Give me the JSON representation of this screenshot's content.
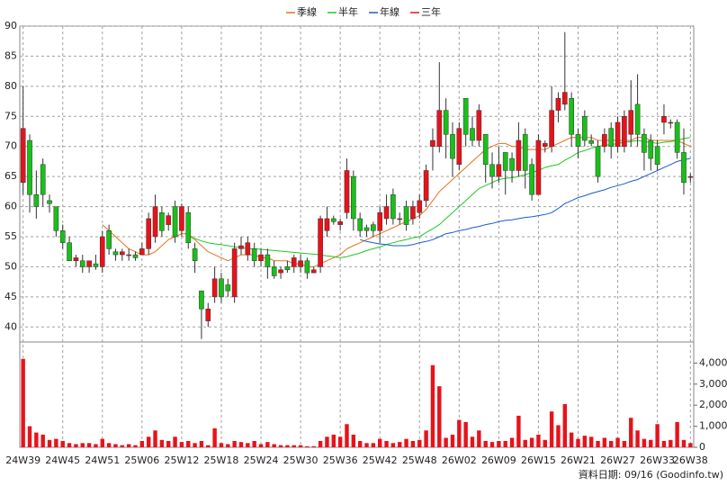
{
  "chart_data": {
    "type": "candlestick",
    "footer": "資料日期: 09/16  (Goodinfo.tw)",
    "up_color": "#e8121a",
    "down_color": "#18c018",
    "ylim": [
      37.5,
      90
    ],
    "yticks": [
      40,
      45,
      50,
      55,
      60,
      65,
      70,
      75,
      80,
      85,
      90
    ],
    "grid": true,
    "categories": [
      "24W39",
      null,
      null,
      null,
      null,
      null,
      "24W45",
      null,
      null,
      null,
      null,
      null,
      "24W51",
      null,
      null,
      null,
      null,
      null,
      "25W06",
      null,
      null,
      null,
      null,
      null,
      "25W12",
      null,
      null,
      null,
      null,
      null,
      "25W18",
      null,
      null,
      null,
      null,
      null,
      "25W24",
      null,
      null,
      null,
      null,
      null,
      "25W30",
      null,
      null,
      null,
      null,
      null,
      "25W36",
      null,
      null,
      null,
      null,
      null,
      "25W42",
      null,
      null,
      null,
      null,
      null,
      "25W48",
      null,
      null,
      null,
      null,
      null,
      "26W02",
      null,
      null,
      null,
      null,
      null,
      "26W09",
      null,
      null,
      null,
      null,
      null,
      "26W15",
      null,
      null,
      null,
      null,
      null,
      "26W21",
      null,
      null,
      null,
      null,
      null,
      "26W27",
      null,
      null,
      null,
      null,
      null,
      "26W33",
      null,
      null,
      null,
      null,
      "26W38"
    ],
    "open": [
      64,
      71,
      62,
      67,
      61,
      60,
      56,
      54,
      51,
      51,
      50,
      50.5,
      50,
      56,
      52.5,
      52,
      52,
      52,
      52,
      53,
      55,
      59,
      57,
      60,
      56,
      59,
      53,
      46,
      41,
      45,
      48,
      47,
      45,
      53,
      52,
      53,
      51,
      52,
      50,
      49,
      50,
      50,
      50,
      51,
      49,
      50,
      56,
      58,
      57,
      59,
      65,
      58,
      56.5,
      57,
      56,
      58,
      62,
      58,
      60,
      58,
      59,
      61,
      70,
      70,
      76,
      72,
      67,
      78,
      73,
      71,
      72,
      67,
      65,
      69,
      68,
      66,
      72,
      67,
      62,
      70,
      70,
      76,
      77,
      78,
      72,
      75,
      71,
      70,
      70,
      73,
      70,
      70,
      72,
      77,
      72,
      71,
      70,
      74,
      74,
      74,
      69,
      65
    ],
    "high": [
      80,
      72,
      66,
      68,
      62,
      60,
      57,
      55,
      52,
      52,
      51,
      52,
      56,
      57,
      53,
      53,
      53,
      52.5,
      54,
      59,
      62,
      60,
      59,
      61,
      60.5,
      60,
      54,
      46,
      44,
      50,
      49,
      48,
      54,
      55,
      55,
      54,
      53,
      53,
      51,
      50,
      51,
      52,
      52,
      51.5,
      50,
      58.5,
      60,
      58.5,
      58,
      68,
      66,
      59,
      57,
      57.5,
      60,
      62,
      63,
      59,
      61,
      61,
      62,
      67,
      73,
      84,
      78,
      74,
      74,
      78,
      75,
      77,
      72,
      69,
      70,
      69,
      69,
      74,
      73,
      68,
      72,
      71,
      80,
      79,
      89,
      79,
      73,
      76,
      72,
      71,
      73,
      74,
      75,
      76,
      81,
      82,
      73,
      72,
      71,
      77,
      74.5,
      74.5,
      73,
      65.5
    ],
    "low": [
      62,
      59,
      58,
      60,
      59,
      55,
      53,
      51,
      50,
      49,
      49,
      49.5,
      49,
      52,
      51,
      51,
      51,
      51,
      52,
      52,
      54,
      55,
      56,
      54,
      55,
      53,
      49,
      38,
      40,
      44,
      44,
      45,
      44,
      52,
      51,
      50,
      50,
      48,
      48,
      48,
      49,
      49,
      49,
      48,
      49,
      49,
      55,
      57,
      56,
      58,
      56,
      55,
      55,
      55,
      54,
      57,
      57,
      57,
      56,
      57,
      58,
      60,
      66,
      69,
      68,
      65,
      66,
      70,
      70,
      70,
      64,
      63,
      64,
      62,
      64,
      65,
      63,
      61,
      62,
      69,
      69,
      74,
      76,
      70,
      68,
      70,
      70,
      64,
      69,
      68,
      69,
      69,
      70,
      70,
      66,
      66,
      66,
      72,
      73,
      68,
      62,
      64
    ],
    "close": [
      73,
      62,
      60,
      62,
      60.5,
      56,
      54,
      51,
      51.5,
      50,
      51,
      50,
      55,
      53,
      52,
      52.5,
      52,
      51.5,
      53,
      58,
      60,
      56,
      58.5,
      55,
      60,
      54,
      51,
      43,
      43,
      48,
      45,
      46,
      53,
      53.5,
      54,
      51,
      52,
      50,
      48.5,
      49.5,
      49.5,
      51.5,
      51,
      49,
      49.5,
      58,
      58,
      57.5,
      57.5,
      66,
      58,
      56,
      56,
      56,
      59,
      60,
      58,
      58,
      57,
      60,
      61,
      66,
      71,
      76,
      72,
      68,
      73,
      72,
      71,
      76,
      67,
      65,
      67,
      66,
      66,
      71,
      66,
      62,
      71,
      70.5,
      76,
      78,
      79,
      72,
      70,
      71,
      70.5,
      65,
      72,
      70,
      74,
      75,
      76,
      72,
      69,
      68,
      67,
      75,
      74,
      69,
      64,
      65
    ],
    "ma_series": [
      {
        "name": "季線",
        "color": "#e8701a",
        "values": [
          null,
          null,
          null,
          null,
          null,
          null,
          null,
          null,
          null,
          null,
          null,
          null,
          57,
          56,
          55,
          54,
          53,
          52.5,
          52,
          52,
          52.5,
          53.5,
          54.5,
          55,
          55.5,
          55.5,
          54.5,
          53.5,
          52.5,
          52,
          51.5,
          51,
          51.5,
          52,
          52,
          52,
          51.5,
          51.5,
          51,
          51,
          51,
          50.5,
          50.5,
          50,
          50,
          50.5,
          51,
          51.5,
          52,
          53,
          53.5,
          54,
          54.5,
          55,
          55.5,
          56,
          56.5,
          57,
          57.5,
          58,
          58.5,
          59.5,
          61,
          62.5,
          63.5,
          64.5,
          65.5,
          66.5,
          67.5,
          68.5,
          69.5,
          70,
          70.5,
          70.5,
          70,
          70,
          69.5,
          69.5,
          69.5,
          69.5,
          70,
          70.5,
          71,
          71.5,
          71.5,
          71.5,
          71.5,
          71,
          71,
          71,
          71,
          71,
          71,
          71.5,
          71.5,
          71,
          71,
          71,
          71,
          71,
          70.5,
          70
        ]
      },
      {
        "name": "半年",
        "color": "#20c820",
        "values": [
          null,
          null,
          null,
          null,
          null,
          null,
          null,
          null,
          null,
          null,
          null,
          null,
          null,
          null,
          null,
          null,
          null,
          null,
          null,
          null,
          null,
          null,
          null,
          null,
          null,
          55,
          54.7,
          54.3,
          54,
          53.8,
          53.7,
          53.5,
          53.3,
          53.2,
          53,
          53,
          52.9,
          52.8,
          52.7,
          52.6,
          52.5,
          52.4,
          52.3,
          52.2,
          52.1,
          52,
          51.8,
          51.7,
          51.5,
          51.7,
          52,
          52.3,
          52.7,
          53,
          53.3,
          53.7,
          54,
          54.3,
          54.5,
          54.8,
          55,
          55.7,
          56.3,
          57,
          58,
          59,
          60,
          61,
          62,
          63,
          63.5,
          64,
          64.5,
          64.7,
          64.8,
          65,
          65.3,
          65.7,
          66,
          66.5,
          66.8,
          67,
          67.7,
          68.3,
          69,
          69.3,
          69.7,
          70,
          70.2,
          70.3,
          70.5,
          70.7,
          70.8,
          71,
          70.8,
          70.7,
          70.5,
          70.7,
          70.8,
          71,
          71.3,
          71.5
        ]
      },
      {
        "name": "年線",
        "color": "#1a5ad0",
        "values": [
          null,
          null,
          null,
          null,
          null,
          null,
          null,
          null,
          null,
          null,
          null,
          null,
          null,
          null,
          null,
          null,
          null,
          null,
          null,
          null,
          null,
          null,
          null,
          null,
          null,
          null,
          null,
          null,
          null,
          null,
          null,
          null,
          null,
          null,
          null,
          null,
          null,
          null,
          null,
          null,
          null,
          null,
          null,
          null,
          null,
          null,
          null,
          null,
          null,
          null,
          null,
          54.5,
          54.2,
          54,
          53.8,
          53.7,
          53.5,
          53.5,
          53.5,
          53.7,
          54,
          54.2,
          54.5,
          55,
          55.5,
          55.7,
          56,
          56.2,
          56.5,
          56.7,
          57,
          57.2,
          57.5,
          57.7,
          57.8,
          58,
          58.2,
          58.3,
          58.5,
          58.7,
          59,
          59.7,
          60.5,
          61,
          61.5,
          61.8,
          62.2,
          62.5,
          62.8,
          63.2,
          63.5,
          63.8,
          64.2,
          64.5,
          65,
          65.5,
          66,
          66.5,
          67,
          67.5,
          67.8,
          68
        ]
      },
      {
        "name": "三年",
        "color": "#e8121a",
        "values": [
          null,
          null,
          null,
          null,
          null,
          null,
          null,
          null,
          null,
          null,
          null,
          null,
          null,
          null,
          null,
          null,
          null,
          null,
          null,
          null,
          null,
          null,
          null,
          null,
          null,
          null,
          null,
          null,
          null,
          null,
          null,
          null,
          null,
          null,
          null,
          null,
          null,
          null,
          null,
          null,
          null,
          null,
          null,
          null,
          null,
          null,
          null,
          null,
          null,
          null,
          null,
          null,
          null,
          null,
          null,
          null,
          null,
          null,
          null,
          null,
          null,
          null,
          null,
          null,
          null,
          null,
          null,
          null,
          null,
          null,
          null,
          null,
          null,
          null,
          null,
          null,
          null,
          null,
          null,
          null,
          null,
          null,
          null,
          null,
          null,
          null,
          null,
          null,
          null,
          null,
          null,
          null,
          null,
          null,
          null,
          null,
          null,
          null,
          null,
          null,
          null,
          null
        ]
      }
    ],
    "volume": {
      "color": "#e8121a",
      "ylim": [
        0,
        5000
      ],
      "yticks": [
        0,
        {
          "value": 1000,
          "label": "1,000"
        },
        {
          "value": 2000,
          "label": "2,000"
        },
        {
          "value": 3000,
          "label": "3,000"
        },
        {
          "value": 4000,
          "label": "4,000"
        }
      ],
      "values": [
        4200,
        1000,
        700,
        600,
        350,
        400,
        300,
        200,
        150,
        200,
        200,
        150,
        400,
        200,
        150,
        100,
        150,
        100,
        300,
        500,
        800,
        350,
        300,
        500,
        250,
        300,
        200,
        300,
        100,
        900,
        200,
        150,
        300,
        250,
        200,
        300,
        150,
        250,
        150,
        100,
        100,
        100,
        100,
        50,
        50,
        300,
        500,
        600,
        500,
        1100,
        600,
        300,
        200,
        200,
        400,
        300,
        200,
        250,
        400,
        300,
        350,
        800,
        3900,
        2900,
        450,
        600,
        1300,
        1200,
        500,
        800,
        300,
        250,
        300,
        300,
        450,
        1500,
        350,
        450,
        600,
        350,
        1700,
        1050,
        2050,
        700,
        400,
        550,
        500,
        300,
        450,
        300,
        450,
        300,
        1400,
        800,
        400,
        350,
        1100,
        300,
        350,
        1200,
        350,
        200
      ]
    }
  }
}
